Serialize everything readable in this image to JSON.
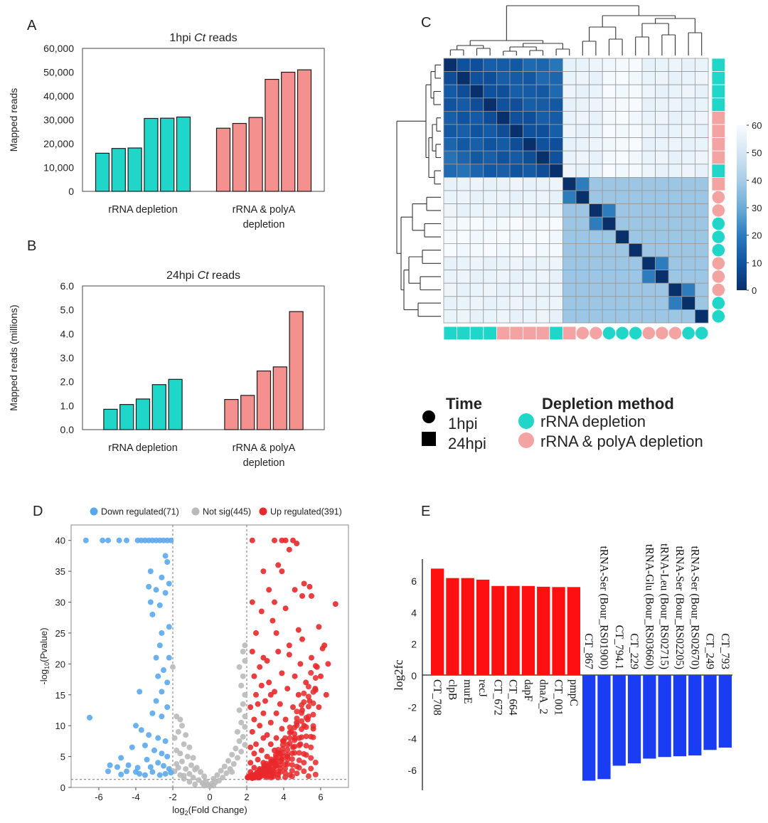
{
  "panels": {
    "a": "A",
    "b": "B",
    "c": "C",
    "d": "D",
    "e": "E"
  },
  "chart_data": [
    {
      "id": "A",
      "type": "bar",
      "title_pre": "1hpi ",
      "title_italic": "Ct",
      "title_post": " reads",
      "ylabel": "Mapped reads",
      "ylim": [
        0,
        60000
      ],
      "yticks": [
        "0",
        "10,000",
        "20,000",
        "30,000",
        "40,000",
        "50,000",
        "60,000"
      ],
      "groups": [
        {
          "label": [
            "rRNA depletion"
          ],
          "color": "#1fd6c8",
          "values": [
            16000,
            18000,
            18200,
            30600,
            30700,
            31200
          ]
        },
        {
          "label": [
            "rRNA & polyA",
            "depletion"
          ],
          "color": "#f4908e",
          "values": [
            26500,
            28500,
            31000,
            47000,
            50000,
            51000
          ]
        }
      ]
    },
    {
      "id": "B",
      "type": "bar",
      "title_pre": "24hpi ",
      "title_italic": "Ct",
      "title_post": " reads",
      "ylabel": "Mapped reads (millions)",
      "ylim": [
        0,
        6
      ],
      "yticks": [
        "0.0",
        "1.0",
        "2.0",
        "3.0",
        "4.0",
        "5.0",
        "6.0"
      ],
      "groups": [
        {
          "label": [
            "rRNA depletion"
          ],
          "color": "#1fd6c8",
          "values": [
            0.85,
            1.05,
            1.28,
            1.88,
            2.1
          ]
        },
        {
          "label": [
            "rRNA & polyA",
            "depletion"
          ],
          "color": "#f4908e",
          "values": [
            1.26,
            1.43,
            2.45,
            2.62,
            4.93
          ]
        }
      ]
    },
    {
      "id": "C",
      "type": "heatmap",
      "n": 20,
      "colorbar_ticks": [
        "60",
        "50",
        "40",
        "30",
        "20",
        "10",
        "0"
      ],
      "colorbar_range": [
        0,
        60
      ],
      "clusters": [
        {
          "start": 0,
          "end": 8,
          "within": 5,
          "light": false
        },
        {
          "start": 9,
          "end": 19,
          "within": 38,
          "light": true
        }
      ],
      "between": 55,
      "pairs": [
        [
          9,
          10
        ],
        [
          11,
          12
        ],
        [
          15,
          16
        ],
        [
          17,
          18
        ]
      ],
      "pair_value": 20,
      "row_shape": [
        "square",
        "square",
        "square",
        "square",
        "square",
        "square",
        "square",
        "square",
        "square",
        "square",
        "circle",
        "circle",
        "circle",
        "circle",
        "circle",
        "circle",
        "circle",
        "circle",
        "circle",
        "circle"
      ],
      "row_method": [
        "rRNA",
        "rRNA",
        "rRNA",
        "rRNA",
        "polyA",
        "polyA",
        "polyA",
        "polyA",
        "rRNA",
        "polyA",
        "polyA",
        "polyA",
        "rRNA",
        "rRNA",
        "rRNA",
        "polyA",
        "polyA",
        "polyA",
        "rRNA",
        "rRNA"
      ],
      "col_method": [
        "rRNA",
        "rRNA",
        "rRNA",
        "rRNA",
        "polyA",
        "polyA",
        "polyA",
        "polyA",
        "rRNA",
        "polyA",
        "polyA",
        "polyA",
        "rRNA",
        "rRNA",
        "rRNA",
        "polyA",
        "polyA",
        "polyA",
        "rRNA",
        "rRNA"
      ],
      "col_shape": [
        "square",
        "square",
        "square",
        "square",
        "square",
        "square",
        "square",
        "square",
        "square",
        "square",
        "circle",
        "circle",
        "circle",
        "circle",
        "circle",
        "circle",
        "circle",
        "circle",
        "circle",
        "circle"
      ],
      "legend": {
        "time_title": "Time",
        "time_items": [
          "1hpi",
          "24hpi"
        ],
        "method_title": "Depletion method",
        "method_items": [
          "rRNA depletion",
          "rRNA & polyA depletion"
        ]
      }
    },
    {
      "id": "D",
      "type": "scatter",
      "xlabel_pre": "log",
      "xlabel_sub": "2",
      "xlabel_post": "(Fold Change)",
      "ylabel_pre": "-log",
      "ylabel_sub": "10",
      "ylabel_post": "(Pvalue)",
      "xlim": [
        -7.5,
        7.5
      ],
      "ylim": [
        0,
        42.5
      ],
      "xticks": [
        -6,
        -4,
        -2,
        0,
        2,
        4,
        6
      ],
      "yticks": [
        0,
        5,
        10,
        15,
        20,
        25,
        30,
        35,
        40
      ],
      "thresholds": {
        "x": [
          -2,
          2
        ],
        "y": 1.3
      },
      "legend": [
        {
          "label": "Down regulated(71)",
          "color": "#5aa8ec"
        },
        {
          "label": "Not sig(445)",
          "color": "#b9b9b9"
        },
        {
          "label": "Up regulated(391)",
          "color": "#e8282a"
        }
      ],
      "down": [
        [
          -6.7,
          40
        ],
        [
          -5.8,
          40
        ],
        [
          -5.5,
          40
        ],
        [
          -4.9,
          40
        ],
        [
          -4.5,
          40
        ],
        [
          -3.9,
          40
        ],
        [
          -3.7,
          40
        ],
        [
          -3.5,
          40
        ],
        [
          -3.3,
          40
        ],
        [
          -3.1,
          40
        ],
        [
          -2.9,
          40
        ],
        [
          -2.7,
          40
        ],
        [
          -2.5,
          40
        ],
        [
          -2.3,
          40
        ],
        [
          -2.1,
          40
        ],
        [
          -2.4,
          37.5
        ],
        [
          -2.3,
          36.5
        ],
        [
          -3.2,
          35
        ],
        [
          -2.6,
          34
        ],
        [
          -2.9,
          32
        ],
        [
          -3.3,
          32.5
        ],
        [
          -2.2,
          33
        ],
        [
          -2.4,
          31.5
        ],
        [
          -3.2,
          30
        ],
        [
          -2.7,
          29.5
        ],
        [
          -3.1,
          28
        ],
        [
          -2.2,
          26
        ],
        [
          -2.6,
          25
        ],
        [
          -2.7,
          23
        ],
        [
          -2.9,
          21
        ],
        [
          -2.2,
          21
        ],
        [
          -2.5,
          19
        ],
        [
          -2.8,
          18
        ],
        [
          -2.3,
          17
        ],
        [
          -2.6,
          15.5
        ],
        [
          -3.8,
          15.5
        ],
        [
          -2.9,
          14
        ],
        [
          -2.3,
          13
        ],
        [
          -3.1,
          12
        ],
        [
          -2.6,
          11.5
        ],
        [
          -6.5,
          11.3
        ],
        [
          -4.0,
          10
        ],
        [
          -3.7,
          9.3
        ],
        [
          -3.3,
          8.5
        ],
        [
          -2.8,
          8
        ],
        [
          -2.4,
          7.5
        ],
        [
          -3.5,
          6.8
        ],
        [
          -4.2,
          6.5
        ],
        [
          -3.0,
          6
        ],
        [
          -2.6,
          5.5
        ],
        [
          -2.3,
          5
        ],
        [
          -4.8,
          4.8
        ],
        [
          -3.4,
          4.5
        ],
        [
          -2.8,
          4
        ],
        [
          -5.4,
          3.6
        ],
        [
          -5.0,
          3.3
        ],
        [
          -4.4,
          3.6
        ],
        [
          -3.9,
          3.2
        ],
        [
          -3.2,
          3.3
        ],
        [
          -2.5,
          3.5
        ],
        [
          -2.2,
          3
        ],
        [
          -5.5,
          2.6
        ],
        [
          -4.5,
          2.6
        ],
        [
          -3.8,
          2.2
        ],
        [
          -3.1,
          2.5
        ],
        [
          -2.4,
          2.2
        ],
        [
          -4.0,
          2.5
        ],
        [
          -3.5,
          2
        ],
        [
          -2.7,
          2
        ],
        [
          -2.1,
          2.4
        ],
        [
          -4.8,
          2.1
        ]
      ],
      "notsig": [
        [
          -1.8,
          11.5
        ],
        [
          -1.6,
          11
        ],
        [
          -1.5,
          10
        ],
        [
          -1.7,
          9
        ],
        [
          -1.3,
          8.5
        ],
        [
          -1.9,
          8
        ],
        [
          -1.4,
          7
        ],
        [
          -1.1,
          6.5
        ],
        [
          -1.8,
          6
        ],
        [
          -1.6,
          5.5
        ],
        [
          -1.2,
          5
        ],
        [
          -0.9,
          4.8
        ],
        [
          -1.5,
          4.2
        ],
        [
          -1.8,
          3.8
        ],
        [
          -1.0,
          3.6
        ],
        [
          -0.7,
          3.2
        ],
        [
          -1.3,
          3
        ],
        [
          -1.9,
          2.6
        ],
        [
          -0.5,
          2.5
        ],
        [
          -1.1,
          2.2
        ],
        [
          -1.6,
          2
        ],
        [
          -0.3,
          1.8
        ],
        [
          -0.9,
          1.6
        ],
        [
          -1.4,
          1.4
        ],
        [
          -0.6,
          1.2
        ],
        [
          -0.2,
          1
        ],
        [
          -1.1,
          0.9
        ],
        [
          -0.4,
          0.7
        ],
        [
          -0.8,
          0.5
        ],
        [
          -0.1,
          0.4
        ],
        [
          0.1,
          0.6
        ],
        [
          0.3,
          0.8
        ],
        [
          0.5,
          1.1
        ],
        [
          0.2,
          1.4
        ],
        [
          0.7,
          1.6
        ],
        [
          0.4,
          2
        ],
        [
          0.9,
          2.3
        ],
        [
          0.6,
          2.7
        ],
        [
          1.1,
          3
        ],
        [
          0.8,
          3.4
        ],
        [
          1.3,
          3.8
        ],
        [
          1.0,
          4.3
        ],
        [
          1.5,
          4.8
        ],
        [
          1.2,
          5.3
        ],
        [
          1.7,
          5.8
        ],
        [
          1.4,
          6.3
        ],
        [
          1.9,
          6.9
        ],
        [
          1.6,
          7.5
        ],
        [
          1.8,
          8.2
        ],
        [
          1.5,
          9
        ],
        [
          1.9,
          9.8
        ],
        [
          1.7,
          10.5
        ],
        [
          1.9,
          11.5
        ],
        [
          1.6,
          12.5
        ],
        [
          1.8,
          13.5
        ],
        [
          1.9,
          15
        ],
        [
          1.7,
          16.5
        ],
        [
          1.8,
          18
        ],
        [
          1.6,
          19.5
        ],
        [
          1.9,
          20.5
        ],
        [
          1.8,
          22
        ],
        [
          1.9,
          23
        ],
        [
          -2.0,
          19.5
        ],
        [
          -1.4,
          1.9
        ],
        [
          -1.7,
          3.2
        ],
        [
          -0.8,
          2.9
        ],
        [
          0.0,
          0.2
        ],
        [
          0.2,
          0.3
        ],
        [
          -0.3,
          0.3
        ],
        [
          1.2,
          2.5
        ]
      ],
      "up": [
        [
          2.3,
          40
        ],
        [
          3.5,
          40
        ],
        [
          3.9,
          40
        ],
        [
          4.1,
          40
        ],
        [
          4.5,
          40
        ],
        [
          4.7,
          39.5
        ],
        [
          4.3,
          38.5
        ],
        [
          3.7,
          36
        ],
        [
          3.9,
          35
        ],
        [
          2.9,
          35
        ],
        [
          5.1,
          33
        ],
        [
          5.4,
          32.5
        ],
        [
          4.6,
          32
        ],
        [
          3.2,
          32
        ],
        [
          5.0,
          31
        ],
        [
          5.5,
          31
        ],
        [
          3.5,
          30
        ],
        [
          6.8,
          29.7
        ],
        [
          4.1,
          29
        ],
        [
          2.8,
          28.5
        ],
        [
          3.4,
          27
        ],
        [
          5.9,
          26
        ],
        [
          4.8,
          25.5
        ],
        [
          2.5,
          25
        ],
        [
          6.2,
          23
        ],
        [
          6.1,
          22.5
        ],
        [
          3.7,
          22
        ],
        [
          4.3,
          21.5
        ],
        [
          2.3,
          22
        ],
        [
          5.5,
          21
        ],
        [
          3.1,
          20.5
        ],
        [
          2.7,
          19.5
        ],
        [
          4.9,
          20
        ],
        [
          5.8,
          19.5
        ],
        [
          3.9,
          18.5
        ],
        [
          2.4,
          18
        ],
        [
          4.6,
          18
        ],
        [
          6.0,
          18
        ],
        [
          3.2,
          17
        ],
        [
          5.2,
          17
        ],
        [
          2.8,
          16.5
        ],
        [
          4.2,
          16
        ],
        [
          5.7,
          16
        ],
        [
          3.5,
          15.5
        ],
        [
          2.5,
          15
        ],
        [
          4.8,
          15
        ],
        [
          3.0,
          14
        ],
        [
          3.8,
          13.5
        ],
        [
          5.4,
          14
        ],
        [
          2.2,
          13
        ],
        [
          4.5,
          13
        ],
        [
          2.9,
          12
        ],
        [
          3.6,
          12
        ],
        [
          5.0,
          12.5
        ],
        [
          2.4,
          11
        ],
        [
          4.1,
          11
        ],
        [
          3.3,
          10.5
        ],
        [
          4.7,
          10.5
        ],
        [
          2.7,
          10
        ],
        [
          3.9,
          9.5
        ],
        [
          5.3,
          11
        ],
        [
          2.3,
          9
        ],
        [
          3.1,
          8.5
        ],
        [
          4.4,
          9
        ],
        [
          2.9,
          8
        ],
        [
          3.6,
          8
        ],
        [
          2.5,
          7
        ],
        [
          3.3,
          7
        ],
        [
          4.0,
          7.5
        ],
        [
          2.2,
          6.5
        ],
        [
          2.8,
          6
        ],
        [
          3.5,
          6
        ],
        [
          4.6,
          8
        ],
        [
          2.4,
          5.5
        ],
        [
          3.1,
          5
        ],
        [
          3.8,
          5.5
        ],
        [
          2.6,
          4.5
        ],
        [
          2.2,
          4
        ],
        [
          2.9,
          4
        ],
        [
          3.4,
          4.2
        ],
        [
          2.4,
          3.2
        ],
        [
          2.7,
          3
        ],
        [
          3.1,
          3
        ],
        [
          2.2,
          2.5
        ],
        [
          2.5,
          2.2
        ],
        [
          2.9,
          2.2
        ],
        [
          3.3,
          2.5
        ],
        [
          2.1,
          1.8
        ],
        [
          2.6,
          1.6
        ],
        [
          2.3,
          1.5
        ],
        [
          3.6,
          3.5
        ],
        [
          4.2,
          5
        ],
        [
          4.9,
          7
        ],
        [
          5.6,
          9.5
        ],
        [
          6.3,
          15
        ],
        [
          5.9,
          13
        ],
        [
          5.1,
          10
        ],
        [
          4.5,
          6.5
        ],
        [
          3.9,
          4.5
        ],
        [
          2.6,
          13.5
        ],
        [
          3.3,
          15
        ],
        [
          2.9,
          21
        ],
        [
          3.6,
          25
        ],
        [
          2.3,
          30
        ],
        [
          4.3,
          23
        ],
        [
          5.0,
          24
        ],
        [
          6.4,
          20
        ]
      ]
    },
    {
      "id": "E",
      "type": "bar",
      "ylabel": "log2fc",
      "ylim": [
        -7.5,
        7.5
      ],
      "yticks": [
        -6,
        -4,
        -2,
        0,
        2,
        4,
        6
      ],
      "categories": [
        "CT_708",
        "clpB",
        "murE",
        "recJ",
        "CT_672",
        "CT_664",
        "dapF",
        "dnaA_2",
        "CT_001",
        "pmpC",
        "CT_867",
        "tRNA-Ser (Bour_RS01900)",
        "CT_794.1",
        "CT_229",
        "tRNA-Glu (Bour_RS03660)",
        "tRNA-Leu (Bour_RS02715)",
        "tRNA-Ser (Bour_RS02205)",
        "tRNA-Ser (Bour_RS02670)",
        "CT_249",
        "CT_793"
      ],
      "values": [
        6.75,
        6.15,
        6.15,
        6.05,
        5.65,
        5.65,
        5.65,
        5.6,
        5.58,
        5.58,
        -6.7,
        -6.6,
        -5.75,
        -5.6,
        -5.3,
        -5.2,
        -5.15,
        -5.1,
        -4.75,
        -4.6
      ],
      "colors": {
        "up": "#ff1010",
        "down": "#1a3cf2"
      }
    }
  ]
}
